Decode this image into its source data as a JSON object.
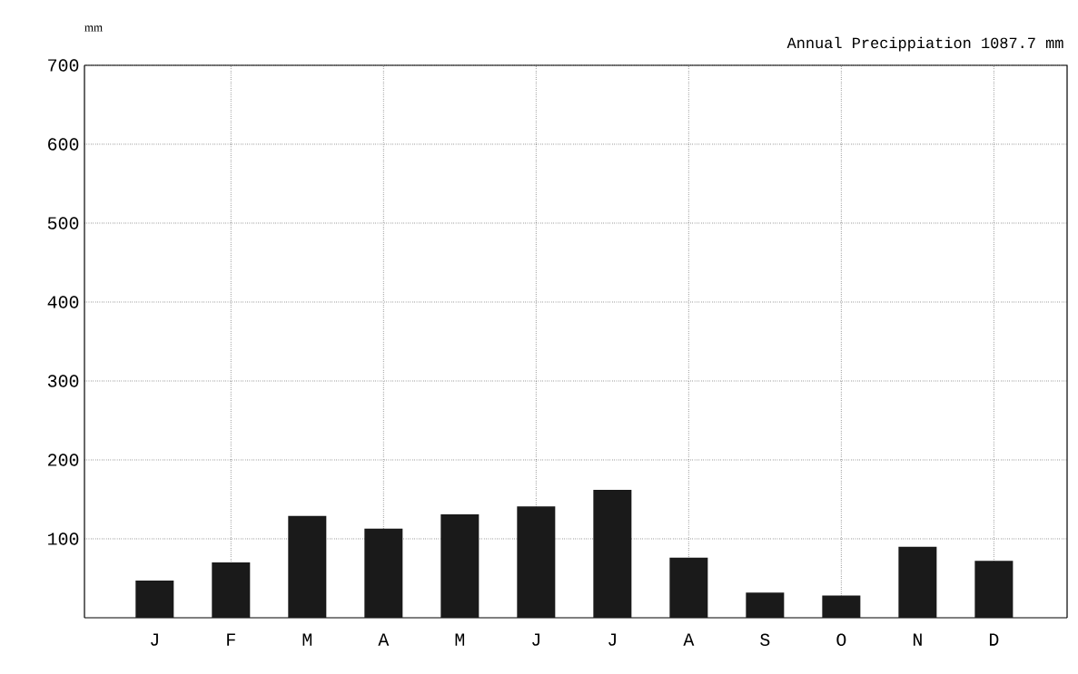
{
  "chart_data": {
    "type": "bar",
    "title": "Annual Precippiation 1087.7 mm",
    "ylabel": "mm",
    "categories": [
      "J",
      "F",
      "M",
      "A",
      "M",
      "J",
      "J",
      "A",
      "S",
      "O",
      "N",
      "D"
    ],
    "values": [
      47,
      70,
      129,
      113,
      131,
      141,
      162,
      76,
      32,
      28,
      90,
      72
    ],
    "color": "#1a1a1a",
    "ylim": [
      0,
      700
    ],
    "yticks": [
      100,
      200,
      300,
      400,
      500,
      600,
      700
    ],
    "grid": true
  }
}
